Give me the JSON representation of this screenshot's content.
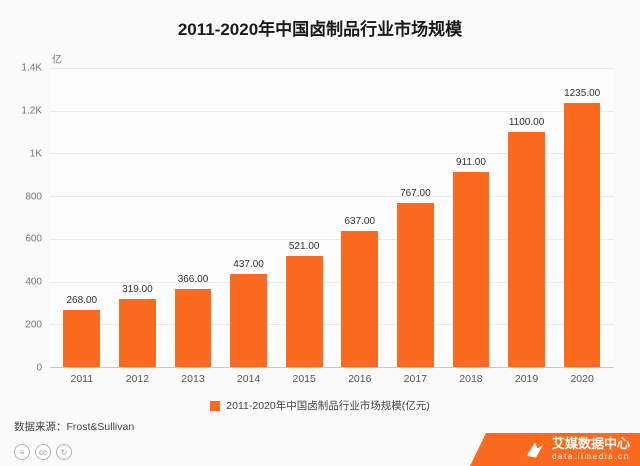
{
  "title": "2011-2020年中国卤制品行业市场规模",
  "y_axis": {
    "unit": "亿元",
    "ticks": [
      "1.4K",
      "1.2K",
      "1K",
      "800",
      "600",
      "400",
      "200",
      "0"
    ]
  },
  "chart_data": {
    "type": "bar",
    "title": "2011-2020年中国卤制品行业市场规模",
    "categories": [
      "2011",
      "2012",
      "2013",
      "2014",
      "2015",
      "2016",
      "2017",
      "2018",
      "2019",
      "2020"
    ],
    "values": [
      268,
      319,
      366,
      437,
      521,
      637,
      767,
      911,
      1100,
      1235
    ],
    "value_labels": [
      "268.00",
      "319.00",
      "366.00",
      "437.00",
      "521.00",
      "637.00",
      "767.00",
      "911.00",
      "1100.00",
      "1235.00"
    ],
    "xlabel": "",
    "ylabel": "亿元",
    "ylim": [
      0,
      1400
    ],
    "y_tick_step": 200,
    "grid": true,
    "bar_color": "#fb6a1e",
    "legend_position": "bottom"
  },
  "legend": {
    "label": "2011-2020年中国卤制品行业市场规模(亿元)",
    "color": "#fb6a1e"
  },
  "source": {
    "label": "数据来源：Frost&Sullivan"
  },
  "footer": {
    "brand": "艾媒数据中心",
    "url": "data.iimedia.cn",
    "accent_color": "#fb6a1e"
  },
  "footer_icons": [
    {
      "name": "share-icon",
      "glyph": "≡"
    },
    {
      "name": "cc-icon",
      "glyph": "cc"
    },
    {
      "name": "refresh-icon",
      "glyph": "↻"
    }
  ]
}
